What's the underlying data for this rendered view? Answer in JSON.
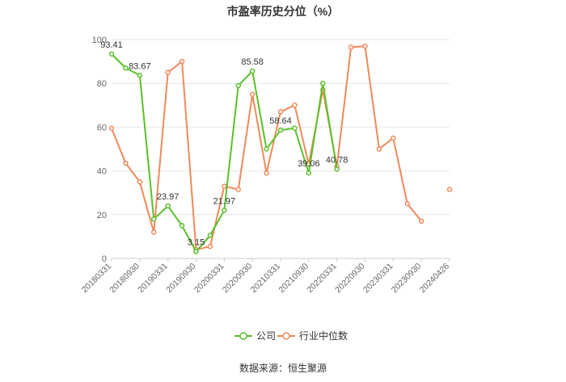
{
  "title": "市盈率历史分位（%）",
  "source": "数据来源：恒生聚源",
  "chart_data": {
    "type": "line",
    "title": "市盈率历史分位（%）",
    "xlabel": "",
    "ylabel": "",
    "ylim": [
      0,
      100
    ],
    "yticks": [
      "0",
      "20",
      "40",
      "60",
      "80",
      "100"
    ],
    "x_tick_labels": [
      "20180331",
      "20180930",
      "20190331",
      "20190930",
      "20200331",
      "20200930",
      "20210331",
      "20210930",
      "20220331",
      "20220930",
      "20230331",
      "20230930",
      "20240426"
    ],
    "x": [
      "20180331",
      "20180630",
      "20180930",
      "20181231",
      "20190331",
      "20190630",
      "20190930",
      "20191231",
      "20200331",
      "20200630",
      "20200930",
      "20201231",
      "20210331",
      "20210630",
      "20210930",
      "20211231",
      "20220331",
      "20220630",
      "20220930",
      "20221231",
      "20230331",
      "20230630",
      "20230930",
      "20231231",
      "20240426"
    ],
    "grid": true,
    "legend_position": "bottom",
    "series": [
      {
        "name": "公司",
        "color": "#5ac12a",
        "values": [
          93.41,
          87,
          83.67,
          18,
          23.97,
          15,
          3.15,
          10.5,
          21.97,
          79,
          85.58,
          50,
          58.64,
          59.5,
          39.06,
          80,
          40.78,
          null,
          null,
          null,
          null,
          null,
          null,
          null,
          null
        ],
        "labels": [
          "93.41",
          null,
          "83.67",
          null,
          "23.97",
          null,
          "3.15",
          null,
          "21.97",
          null,
          "85.58",
          null,
          "58.64",
          null,
          "39.06",
          null,
          "40.78",
          null,
          null,
          null,
          null,
          null,
          null,
          null,
          null
        ]
      },
      {
        "name": "行业中位数",
        "color": "#f0895a",
        "values": [
          59.5,
          43.5,
          35,
          12,
          85,
          90,
          4,
          5.5,
          33,
          31.5,
          75,
          39,
          67,
          70,
          43,
          77,
          42,
          96.5,
          97,
          50,
          55,
          25,
          17,
          null,
          31.5
        ]
      }
    ]
  }
}
